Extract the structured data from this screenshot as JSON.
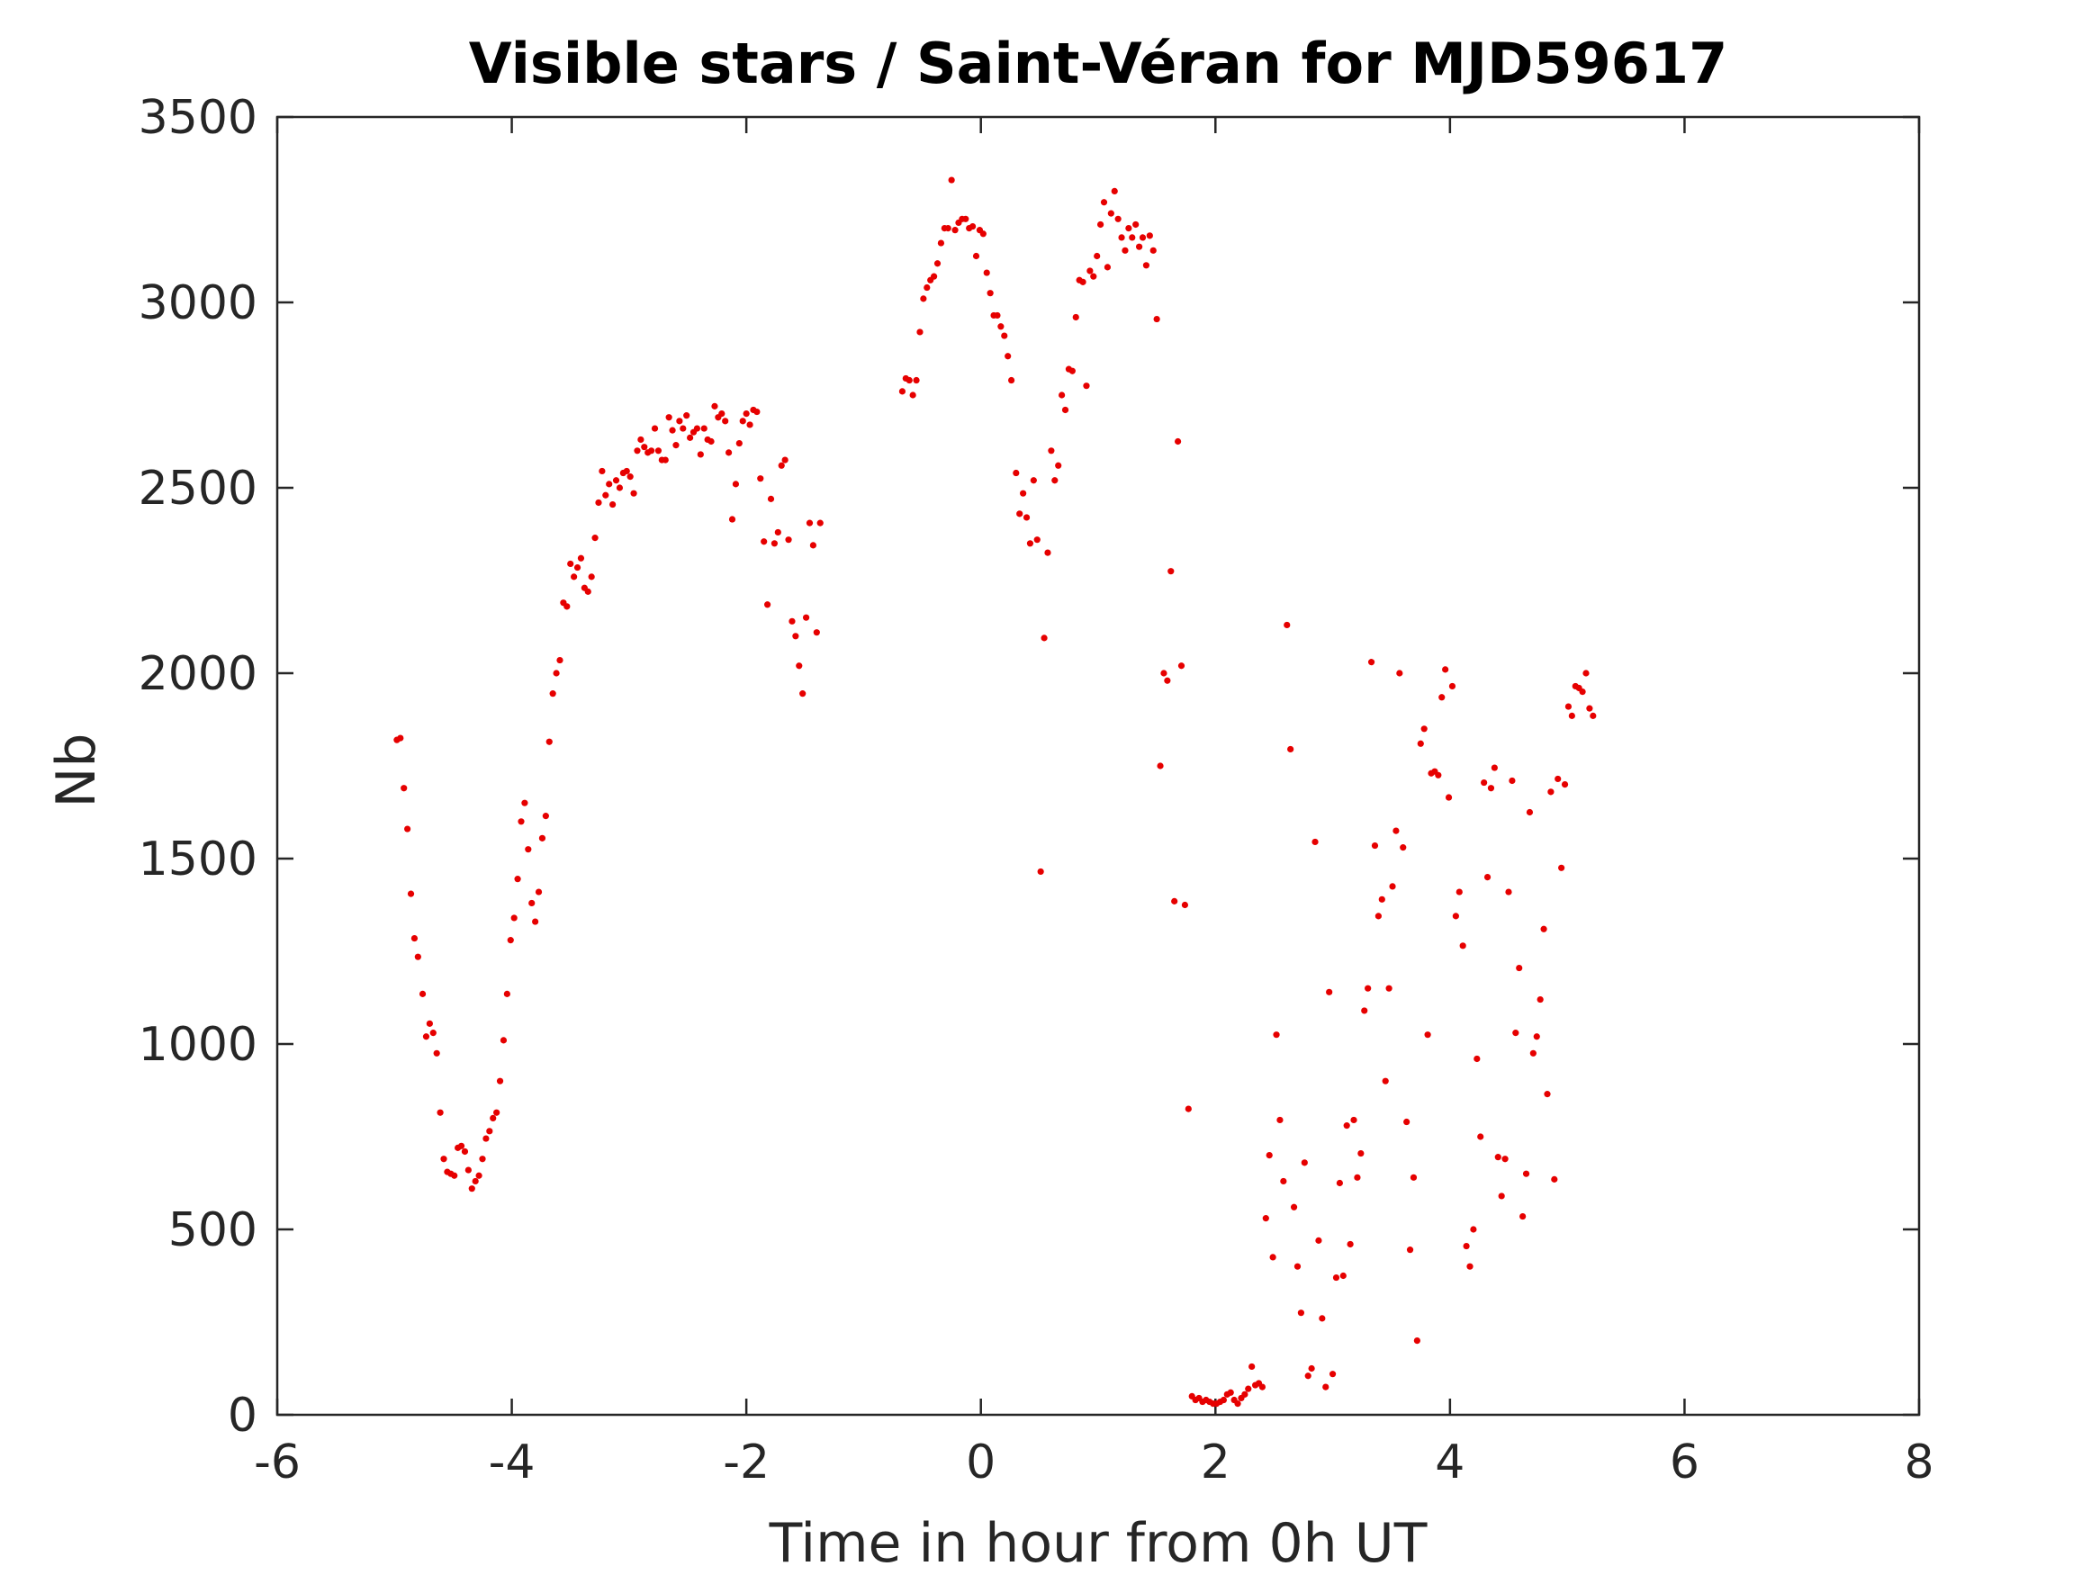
{
  "chart_data": {
    "type": "scatter",
    "title": "Visible stars / Saint-Véran for MJD59617",
    "xlabel": "Time in hour from 0h UT",
    "ylabel": "Nb",
    "xlim": [
      -6,
      8
    ],
    "ylim": [
      0,
      3500
    ],
    "xticks": [
      "-6",
      "-4",
      "-2",
      "0",
      "2",
      "4",
      "6",
      "8"
    ],
    "yticks": [
      "0",
      "500",
      "1000",
      "1500",
      "2000",
      "2500",
      "3000",
      "3500"
    ],
    "grid": false,
    "legend": "none",
    "marker_color": "#e60000",
    "series": [
      {
        "points": [
          [
            -4.98,
            1820
          ],
          [
            -4.95,
            1825
          ],
          [
            -4.92,
            1690
          ],
          [
            -4.89,
            1580
          ],
          [
            -4.86,
            1405
          ],
          [
            -4.83,
            1285
          ],
          [
            -4.8,
            1235
          ],
          [
            -4.76,
            1135
          ],
          [
            -4.73,
            1020
          ],
          [
            -4.7,
            1055
          ],
          [
            -4.67,
            1030
          ],
          [
            -4.64,
            975
          ],
          [
            -4.61,
            815
          ],
          [
            -4.58,
            690
          ],
          [
            -4.55,
            655
          ],
          [
            -4.52,
            650
          ],
          [
            -4.49,
            645
          ],
          [
            -4.46,
            720
          ],
          [
            -4.43,
            725
          ],
          [
            -4.4,
            710
          ],
          [
            -4.37,
            660
          ],
          [
            -4.34,
            610
          ],
          [
            -4.31,
            630
          ],
          [
            -4.28,
            645
          ],
          [
            -4.25,
            690
          ],
          [
            -4.22,
            745
          ],
          [
            -4.19,
            765
          ],
          [
            -4.16,
            800
          ],
          [
            -4.13,
            815
          ],
          [
            -4.1,
            900
          ],
          [
            -4.07,
            1010
          ],
          [
            -4.04,
            1135
          ],
          [
            -4.01,
            1280
          ],
          [
            -3.98,
            1340
          ],
          [
            -3.95,
            1445
          ],
          [
            -3.92,
            1600
          ],
          [
            -3.89,
            1650
          ],
          [
            -3.86,
            1525
          ],
          [
            -3.83,
            1380
          ],
          [
            -3.8,
            1330
          ],
          [
            -3.77,
            1410
          ],
          [
            -3.74,
            1555
          ],
          [
            -3.71,
            1615
          ],
          [
            -3.68,
            1815
          ],
          [
            -3.65,
            1945
          ],
          [
            -3.62,
            2000
          ],
          [
            -3.59,
            2035
          ],
          [
            -3.56,
            2190
          ],
          [
            -3.53,
            2180
          ],
          [
            -3.5,
            2295
          ],
          [
            -3.47,
            2260
          ],
          [
            -3.44,
            2285
          ],
          [
            -3.41,
            2310
          ],
          [
            -3.38,
            2230
          ],
          [
            -3.35,
            2220
          ],
          [
            -3.32,
            2260
          ],
          [
            -3.29,
            2365
          ],
          [
            -3.26,
            2460
          ],
          [
            -3.23,
            2545
          ],
          [
            -3.2,
            2480
          ],
          [
            -3.17,
            2510
          ],
          [
            -3.14,
            2455
          ],
          [
            -3.11,
            2520
          ],
          [
            -3.08,
            2500
          ],
          [
            -3.05,
            2540
          ],
          [
            -3.02,
            2545
          ],
          [
            -2.99,
            2530
          ],
          [
            -2.96,
            2485
          ],
          [
            -2.93,
            2600
          ],
          [
            -2.9,
            2630
          ],
          [
            -2.87,
            2610
          ],
          [
            -2.84,
            2595
          ],
          [
            -2.81,
            2600
          ],
          [
            -2.78,
            2660
          ],
          [
            -2.75,
            2600
          ],
          [
            -2.72,
            2575
          ],
          [
            -2.69,
            2575
          ],
          [
            -2.66,
            2690
          ],
          [
            -2.63,
            2655
          ],
          [
            -2.6,
            2615
          ],
          [
            -2.57,
            2680
          ],
          [
            -2.54,
            2660
          ],
          [
            -2.51,
            2695
          ],
          [
            -2.48,
            2635
          ],
          [
            -2.45,
            2650
          ],
          [
            -2.42,
            2660
          ],
          [
            -2.39,
            2590
          ],
          [
            -2.36,
            2660
          ],
          [
            -2.33,
            2630
          ],
          [
            -2.3,
            2625
          ],
          [
            -2.27,
            2720
          ],
          [
            -2.24,
            2690
          ],
          [
            -2.21,
            2700
          ],
          [
            -2.18,
            2680
          ],
          [
            -2.15,
            2595
          ],
          [
            -2.12,
            2415
          ],
          [
            -2.09,
            2510
          ],
          [
            -2.06,
            2620
          ],
          [
            -2.03,
            2680
          ],
          [
            -2.0,
            2700
          ],
          [
            -1.97,
            2670
          ],
          [
            -1.94,
            2710
          ],
          [
            -1.91,
            2705
          ],
          [
            -1.88,
            2525
          ],
          [
            -1.85,
            2355
          ],
          [
            -1.82,
            2185
          ],
          [
            -1.79,
            2470
          ],
          [
            -1.76,
            2350
          ],
          [
            -1.73,
            2380
          ],
          [
            -1.7,
            2560
          ],
          [
            -1.67,
            2575
          ],
          [
            -1.64,
            2360
          ],
          [
            -1.61,
            2140
          ],
          [
            -1.58,
            2100
          ],
          [
            -1.55,
            2020
          ],
          [
            -1.52,
            1945
          ],
          [
            -1.49,
            2150
          ],
          [
            -1.46,
            2405
          ],
          [
            -1.43,
            2345
          ],
          [
            -1.4,
            2110
          ],
          [
            -1.37,
            2405
          ],
          [
            -0.67,
            2760
          ],
          [
            -0.64,
            2795
          ],
          [
            -0.61,
            2790
          ],
          [
            -0.58,
            2750
          ],
          [
            -0.55,
            2790
          ],
          [
            -0.52,
            2920
          ],
          [
            -0.49,
            3010
          ],
          [
            -0.46,
            3040
          ],
          [
            -0.43,
            3060
          ],
          [
            -0.4,
            3070
          ],
          [
            -0.37,
            3105
          ],
          [
            -0.34,
            3160
          ],
          [
            -0.31,
            3200
          ],
          [
            -0.28,
            3200
          ],
          [
            -0.25,
            3330
          ],
          [
            -0.22,
            3195
          ],
          [
            -0.19,
            3215
          ],
          [
            -0.16,
            3225
          ],
          [
            -0.13,
            3225
          ],
          [
            -0.1,
            3200
          ],
          [
            -0.07,
            3205
          ],
          [
            -0.04,
            3125
          ],
          [
            -0.01,
            3195
          ],
          [
            0.02,
            3185
          ],
          [
            0.05,
            3080
          ],
          [
            0.08,
            3025
          ],
          [
            0.11,
            2965
          ],
          [
            0.14,
            2965
          ],
          [
            0.17,
            2935
          ],
          [
            0.2,
            2910
          ],
          [
            0.23,
            2855
          ],
          [
            0.26,
            2790
          ],
          [
            0.3,
            2540
          ],
          [
            0.33,
            2430
          ],
          [
            0.36,
            2485
          ],
          [
            0.39,
            2420
          ],
          [
            0.42,
            2350
          ],
          [
            0.45,
            2520
          ],
          [
            0.48,
            2360
          ],
          [
            0.51,
            1465
          ],
          [
            0.54,
            2095
          ],
          [
            0.57,
            2325
          ],
          [
            0.6,
            2600
          ],
          [
            0.63,
            2520
          ],
          [
            0.66,
            2560
          ],
          [
            0.69,
            2750
          ],
          [
            0.72,
            2710
          ],
          [
            0.75,
            2820
          ],
          [
            0.78,
            2815
          ],
          [
            0.81,
            2960
          ],
          [
            0.84,
            3060
          ],
          [
            0.87,
            3055
          ],
          [
            0.9,
            2775
          ],
          [
            0.93,
            3085
          ],
          [
            0.96,
            3070
          ],
          [
            0.99,
            3125
          ],
          [
            1.02,
            3210
          ],
          [
            1.05,
            3270
          ],
          [
            1.08,
            3095
          ],
          [
            1.11,
            3240
          ],
          [
            1.14,
            3300
          ],
          [
            1.17,
            3225
          ],
          [
            1.2,
            3175
          ],
          [
            1.23,
            3140
          ],
          [
            1.26,
            3200
          ],
          [
            1.29,
            3175
          ],
          [
            1.32,
            3210
          ],
          [
            1.35,
            3150
          ],
          [
            1.38,
            3175
          ],
          [
            1.41,
            3100
          ],
          [
            1.44,
            3180
          ],
          [
            1.47,
            3140
          ],
          [
            1.5,
            2955
          ],
          [
            1.53,
            1750
          ],
          [
            1.56,
            2000
          ],
          [
            1.59,
            1980
          ],
          [
            1.62,
            2275
          ],
          [
            1.65,
            1385
          ],
          [
            1.68,
            2625
          ],
          [
            1.71,
            2020
          ],
          [
            1.74,
            1375
          ],
          [
            1.77,
            825
          ],
          [
            1.8,
            50
          ],
          [
            1.83,
            40
          ],
          [
            1.86,
            45
          ],
          [
            1.89,
            35
          ],
          [
            1.92,
            40
          ],
          [
            1.95,
            35
          ],
          [
            1.98,
            30
          ],
          [
            2.01,
            30
          ],
          [
            2.04,
            35
          ],
          [
            2.07,
            40
          ],
          [
            2.1,
            55
          ],
          [
            2.13,
            60
          ],
          [
            2.16,
            40
          ],
          [
            2.19,
            30
          ],
          [
            2.22,
            45
          ],
          [
            2.25,
            55
          ],
          [
            2.28,
            70
          ],
          [
            2.31,
            130
          ],
          [
            2.34,
            80
          ],
          [
            2.37,
            85
          ],
          [
            2.4,
            75
          ],
          [
            2.43,
            530
          ],
          [
            2.46,
            700
          ],
          [
            2.49,
            425
          ],
          [
            2.52,
            1025
          ],
          [
            2.55,
            795
          ],
          [
            2.58,
            630
          ],
          [
            2.61,
            2130
          ],
          [
            2.64,
            1795
          ],
          [
            2.67,
            560
          ],
          [
            2.7,
            400
          ],
          [
            2.73,
            275
          ],
          [
            2.76,
            680
          ],
          [
            2.79,
            105
          ],
          [
            2.82,
            125
          ],
          [
            2.85,
            1545
          ],
          [
            2.88,
            470
          ],
          [
            2.91,
            260
          ],
          [
            2.94,
            75
          ],
          [
            2.97,
            1140
          ],
          [
            3.0,
            110
          ],
          [
            3.03,
            370
          ],
          [
            3.06,
            625
          ],
          [
            3.09,
            375
          ],
          [
            3.12,
            780
          ],
          [
            3.15,
            460
          ],
          [
            3.18,
            795
          ],
          [
            3.21,
            640
          ],
          [
            3.24,
            705
          ],
          [
            3.27,
            1090
          ],
          [
            3.3,
            1150
          ],
          [
            3.33,
            2030
          ],
          [
            3.36,
            1535
          ],
          [
            3.39,
            1345
          ],
          [
            3.42,
            1390
          ],
          [
            3.45,
            900
          ],
          [
            3.48,
            1150
          ],
          [
            3.51,
            1425
          ],
          [
            3.54,
            1575
          ],
          [
            3.57,
            2000
          ],
          [
            3.6,
            1530
          ],
          [
            3.63,
            790
          ],
          [
            3.66,
            445
          ],
          [
            3.69,
            640
          ],
          [
            3.72,
            200
          ],
          [
            3.75,
            1810
          ],
          [
            3.78,
            1850
          ],
          [
            3.81,
            1025
          ],
          [
            3.84,
            1730
          ],
          [
            3.87,
            1735
          ],
          [
            3.9,
            1725
          ],
          [
            3.93,
            1935
          ],
          [
            3.96,
            2010
          ],
          [
            3.99,
            1665
          ],
          [
            4.02,
            1965
          ],
          [
            4.05,
            1345
          ],
          [
            4.08,
            1410
          ],
          [
            4.11,
            1265
          ],
          [
            4.14,
            455
          ],
          [
            4.17,
            400
          ],
          [
            4.2,
            500
          ],
          [
            4.23,
            960
          ],
          [
            4.26,
            750
          ],
          [
            4.29,
            1705
          ],
          [
            4.32,
            1450
          ],
          [
            4.35,
            1690
          ],
          [
            4.38,
            1745
          ],
          [
            4.41,
            695
          ],
          [
            4.44,
            590
          ],
          [
            4.47,
            690
          ],
          [
            4.5,
            1410
          ],
          [
            4.53,
            1710
          ],
          [
            4.56,
            1030
          ],
          [
            4.59,
            1205
          ],
          [
            4.62,
            535
          ],
          [
            4.65,
            650
          ],
          [
            4.68,
            1625
          ],
          [
            4.71,
            975
          ],
          [
            4.74,
            1020
          ],
          [
            4.77,
            1120
          ],
          [
            4.8,
            1310
          ],
          [
            4.83,
            865
          ],
          [
            4.86,
            1680
          ],
          [
            4.89,
            635
          ],
          [
            4.92,
            1715
          ],
          [
            4.95,
            1475
          ],
          [
            4.98,
            1700
          ],
          [
            5.01,
            1910
          ],
          [
            5.04,
            1885
          ],
          [
            5.07,
            1965
          ],
          [
            5.1,
            1960
          ],
          [
            5.13,
            1950
          ],
          [
            5.16,
            2000
          ],
          [
            5.19,
            1905
          ],
          [
            5.22,
            1885
          ]
        ]
      }
    ]
  }
}
